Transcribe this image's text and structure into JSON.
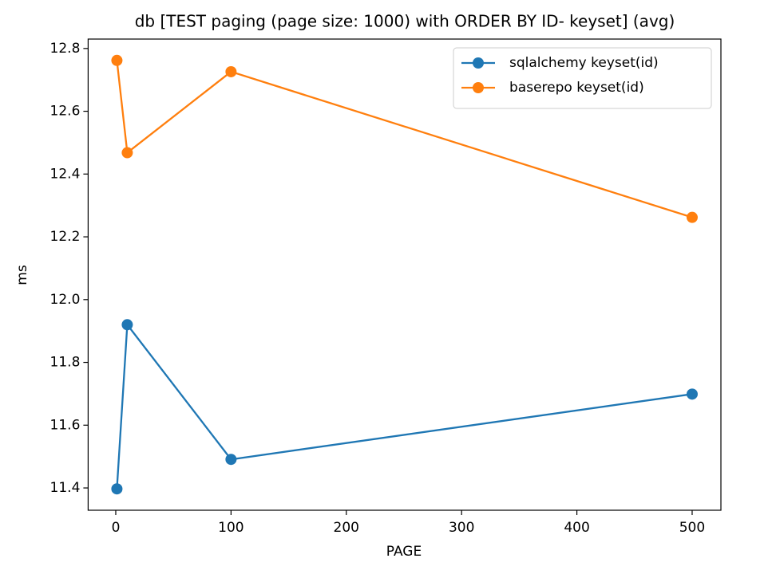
{
  "chart_data": {
    "type": "line",
    "title": "db [TEST paging (page size: 1000) with ORDER BY ID- keyset] (avg)",
    "x_label": "PAGE",
    "y_label": "ms",
    "x": [
      1,
      10,
      100,
      500
    ],
    "series": [
      {
        "name": "sqlalchemy keyset(id)",
        "color": "#1f77b4",
        "values": [
          11.397,
          11.92,
          11.491,
          11.699
        ]
      },
      {
        "name": "baserepo keyset(id)",
        "color": "#ff7f0e",
        "values": [
          12.762,
          12.468,
          12.726,
          12.262
        ]
      }
    ],
    "xlim": [
      -23.95,
      524.95
    ],
    "xticks": [
      0,
      100,
      200,
      300,
      400,
      500
    ],
    "ylim": [
      11.329,
      12.83
    ],
    "yticks": [
      11.4,
      11.6,
      11.8,
      {
        "value": 12,
        "label": "12.0"
      },
      12.2,
      12.4,
      12.6,
      12.8
    ],
    "grid": false,
    "legend": "upper right"
  }
}
